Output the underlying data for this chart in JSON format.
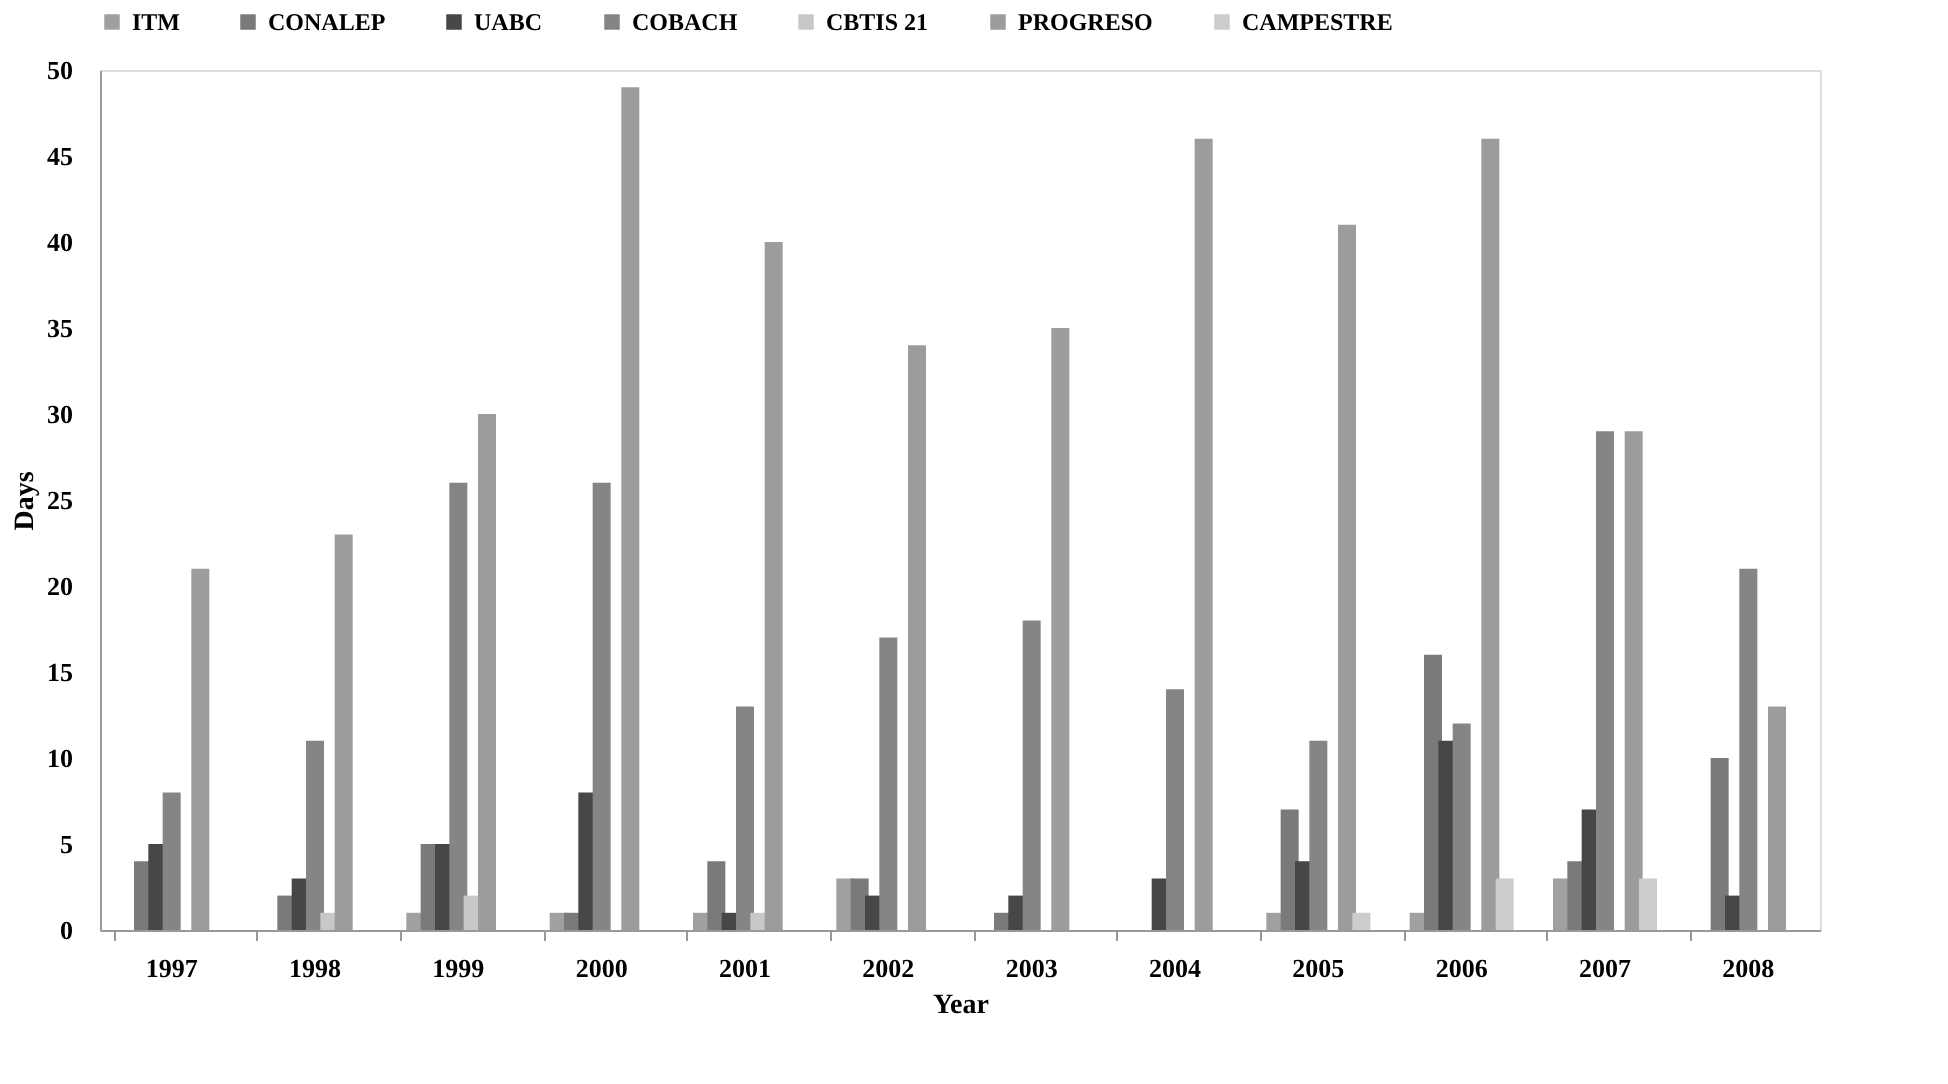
{
  "chart_data": {
    "type": "bar",
    "xlabel": "Year",
    "ylabel": "Days",
    "categories": [
      "1997",
      "1998",
      "1999",
      "2000",
      "2001",
      "2002",
      "2003",
      "2004",
      "2005",
      "2006",
      "2007",
      "2008"
    ],
    "series": [
      {
        "name": "ITM",
        "color": "#a0a0a0",
        "values": [
          0,
          0,
          1,
          1,
          1,
          3,
          0,
          0,
          1,
          1,
          3,
          0
        ]
      },
      {
        "name": "CONALEP",
        "color": "#7a7a7a",
        "values": [
          4,
          2,
          5,
          1,
          4,
          3,
          1,
          0,
          7,
          16,
          4,
          10
        ]
      },
      {
        "name": "UABC",
        "color": "#474747",
        "values": [
          5,
          3,
          5,
          8,
          1,
          2,
          2,
          3,
          4,
          11,
          7,
          2
        ]
      },
      {
        "name": "COBACH",
        "color": "#858585",
        "values": [
          8,
          11,
          26,
          26,
          13,
          17,
          18,
          14,
          11,
          12,
          29,
          21
        ]
      },
      {
        "name": "CBTIS 21",
        "color": "#c8c8c8",
        "values": [
          0,
          1,
          2,
          0,
          1,
          0,
          0,
          0,
          0,
          0,
          0,
          0
        ]
      },
      {
        "name": "PROGRESO",
        "color": "#9c9c9c",
        "values": [
          21,
          23,
          30,
          49,
          40,
          34,
          35,
          46,
          41,
          46,
          29,
          13
        ]
      },
      {
        "name": "CAMPESTRE",
        "color": "#cccccc",
        "values": [
          0,
          0,
          0,
          0,
          0,
          0,
          0,
          0,
          1,
          3,
          3,
          0
        ]
      }
    ],
    "ylim": [
      0,
      50
    ],
    "yticks": [
      0,
      5,
      10,
      15,
      20,
      25,
      30,
      35,
      40,
      45,
      50
    ],
    "grid": false,
    "legend": "top"
  }
}
